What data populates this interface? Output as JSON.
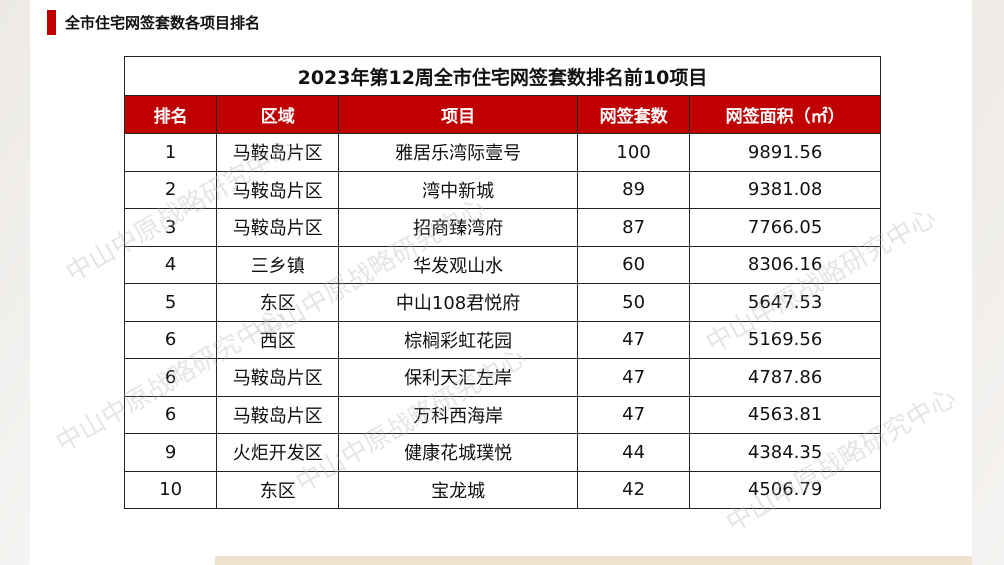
{
  "header": {
    "title": "全市住宅网签套数各项目排名"
  },
  "watermark": "中山中原战略研究中心",
  "table": {
    "title": "2023年第12周全市住宅网签套数排名前10项目",
    "columns": [
      "排名",
      "区域",
      "项目",
      "网签套数",
      "网签面积（㎡）"
    ],
    "rows": [
      [
        "1",
        "马鞍岛片区",
        "雅居乐湾际壹号",
        "100",
        "9891.56"
      ],
      [
        "2",
        "马鞍岛片区",
        "湾中新城",
        "89",
        "9381.08"
      ],
      [
        "3",
        "马鞍岛片区",
        "招商臻湾府",
        "87",
        "7766.05"
      ],
      [
        "4",
        "三乡镇",
        "华发观山水",
        "60",
        "8306.16"
      ],
      [
        "5",
        "东区",
        "中山108君悦府",
        "50",
        "5647.53"
      ],
      [
        "6",
        "西区",
        "棕榈彩虹花园",
        "47",
        "5169.56"
      ],
      [
        "6",
        "马鞍岛片区",
        "保利天汇左岸",
        "47",
        "4787.86"
      ],
      [
        "6",
        "马鞍岛片区",
        "万科西海岸",
        "47",
        "4563.81"
      ],
      [
        "9",
        "火炬开发区",
        "健康花城璞悦",
        "44",
        "4384.35"
      ],
      [
        "10",
        "东区",
        "宝龙城",
        "42",
        "4506.79"
      ]
    ]
  }
}
